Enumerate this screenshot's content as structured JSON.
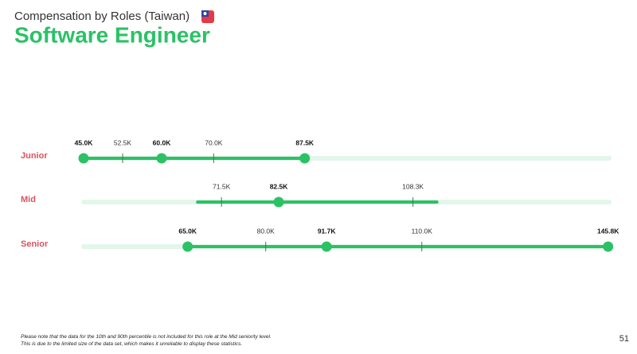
{
  "chart_data": {
    "type": "percentile-range",
    "subtitle": "Compensation by Roles (Taiwan)",
    "title": "Software Engineer",
    "xlim": [
      45,
      146
    ],
    "color": "#2bc266",
    "track_color": "#e3f6ea",
    "rows": [
      {
        "label": "Junior",
        "values": [
          45.0,
          52.5,
          60.0,
          70.0,
          87.5
        ],
        "value_labels": [
          "45.0K",
          "52.5K",
          "60.0K",
          "70.0K",
          "87.5K"
        ]
      },
      {
        "label": "Mid",
        "values": [
          null,
          71.5,
          82.5,
          108.3,
          null
        ],
        "value_labels": [
          null,
          "71.5K",
          "82.5K",
          "108.3K",
          null
        ]
      },
      {
        "label": "Senior",
        "values": [
          65.0,
          80.0,
          91.7,
          110.0,
          145.8
        ],
        "value_labels": [
          "65.0K",
          "80.0K",
          "91.7K",
          "110.0K",
          "145.8K"
        ]
      }
    ],
    "notes": [
      "Please note that the data for the 10th and 90th percentile is not included for this role at the Mid seniority level.",
      "This is due to the limited size of the data set, which makes it unreliable to display these statistics."
    ],
    "page_number": "51"
  }
}
